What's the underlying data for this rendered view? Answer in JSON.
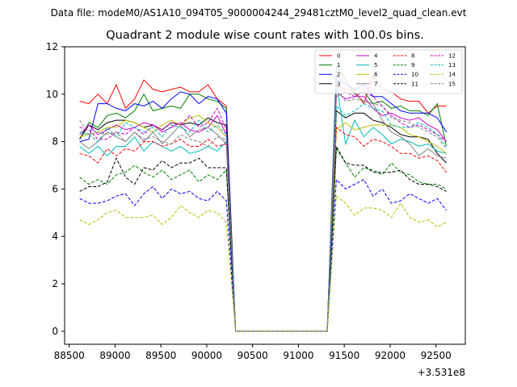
{
  "chart_data": {
    "type": "line",
    "suptitle": "Data file: modeM0/AS1A10_094T05_9000004244_29481cztM0_level2_quad_clean.evt",
    "title": "Quadrant 2 module wise count rates with 100.0s bins.",
    "xlabel": "",
    "ylabel": "",
    "x_offset_label": "+3.531e8",
    "xlim": [
      88450,
      92820
    ],
    "ylim": [
      -0.55,
      12.0
    ],
    "x_ticks": [
      88500,
      89000,
      89500,
      90000,
      90500,
      91000,
      91500,
      92000,
      92500
    ],
    "x_tick_labels": [
      "88500",
      "89000",
      "89500",
      "90000",
      "90500",
      "91000",
      "91500",
      "92000",
      "92500"
    ],
    "y_ticks": [
      0,
      2,
      4,
      6,
      8,
      10,
      12
    ],
    "y_tick_labels": [
      "0",
      "2",
      "4",
      "6",
      "8",
      "10",
      "12"
    ],
    "legend_position": "upper-right",
    "legend_columns": 4,
    "x": [
      88614,
      88714,
      88814,
      88914,
      89014,
      89114,
      89214,
      89314,
      89414,
      89514,
      89614,
      89714,
      89814,
      89914,
      90014,
      90114,
      90214,
      90314,
      90414,
      90514,
      90614,
      90714,
      90814,
      90914,
      91014,
      91114,
      91214,
      91314,
      91414,
      91514,
      91614,
      91714,
      91814,
      91914,
      92014,
      92114,
      92214,
      92314,
      92414,
      92514,
      92614
    ],
    "series": [
      {
        "name": "0",
        "color": "#ff0000",
        "dash": "solid",
        "values": [
          9.7,
          9.6,
          10.0,
          9.6,
          10.4,
          9.4,
          9.8,
          10.6,
          10.2,
          10.1,
          10.2,
          10.3,
          10.1,
          10.1,
          10.4,
          9.8,
          9.5,
          0,
          0,
          0,
          0,
          0,
          0,
          0,
          0,
          0,
          0,
          0,
          10.4,
          10.2,
          10.1,
          9.6,
          10.8,
          10.2,
          10.1,
          9.8,
          9.7,
          9.7,
          9.2,
          9.5,
          9.5
        ]
      },
      {
        "name": "1",
        "color": "#008000",
        "dash": "solid",
        "values": [
          8.1,
          8.8,
          8.6,
          9.1,
          9.2,
          9.0,
          9.3,
          10.0,
          9.3,
          9.4,
          9.5,
          9.4,
          10.0,
          10.0,
          9.8,
          9.7,
          9.4,
          0,
          0,
          0,
          0,
          0,
          0,
          0,
          0,
          0,
          0,
          0,
          11.2,
          10.6,
          10.0,
          10.1,
          9.6,
          9.7,
          9.4,
          9.5,
          9.3,
          9.3,
          9.1,
          9.6,
          7.8
        ]
      },
      {
        "name": "2",
        "color": "#0000ff",
        "dash": "solid",
        "values": [
          8.0,
          8.1,
          9.6,
          9.6,
          9.4,
          9.3,
          9.6,
          9.5,
          9.7,
          9.4,
          9.8,
          10.1,
          10.0,
          9.6,
          9.9,
          9.8,
          9.2,
          0,
          0,
          0,
          0,
          0,
          0,
          0,
          0,
          0,
          0,
          0,
          10.8,
          10.4,
          10.2,
          10.4,
          9.9,
          9.9,
          9.6,
          9.3,
          9.2,
          9.2,
          9.2,
          9.0,
          8.4
        ]
      },
      {
        "name": "3",
        "color": "#000000",
        "dash": "solid",
        "values": [
          8.1,
          8.7,
          8.5,
          8.8,
          8.9,
          8.9,
          8.8,
          8.6,
          8.7,
          8.5,
          8.8,
          8.7,
          8.8,
          8.7,
          9.0,
          8.8,
          8.7,
          0,
          0,
          0,
          0,
          0,
          0,
          0,
          0,
          0,
          0,
          0,
          9.3,
          9.0,
          9.2,
          9.2,
          8.9,
          8.8,
          8.6,
          8.3,
          8.2,
          8.2,
          8.1,
          7.5,
          7.1
        ]
      },
      {
        "name": "4",
        "color": "#cc00cc",
        "dash": "solid",
        "values": [
          8.3,
          8.7,
          8.3,
          8.5,
          8.7,
          8.5,
          8.6,
          8.8,
          8.7,
          8.4,
          8.6,
          8.8,
          8.5,
          8.4,
          8.6,
          9.1,
          8.3,
          0,
          0,
          0,
          0,
          0,
          0,
          0,
          0,
          0,
          0,
          0,
          10.1,
          9.8,
          9.9,
          9.9,
          9.4,
          9.1,
          9.2,
          9.0,
          8.9,
          9.0,
          8.7,
          8.5,
          8.0
        ]
      },
      {
        "name": "5",
        "color": "#00bbbb",
        "dash": "solid",
        "values": [
          7.8,
          7.5,
          7.8,
          7.4,
          7.8,
          7.8,
          8.2,
          7.6,
          8.0,
          7.8,
          7.6,
          7.8,
          7.5,
          7.6,
          7.8,
          7.6,
          8.0,
          0,
          0,
          0,
          0,
          0,
          0,
          0,
          0,
          0,
          0,
          0,
          10.5,
          7.9,
          8.9,
          8.2,
          8.6,
          8.3,
          7.9,
          8.1,
          8.0,
          7.8,
          7.9,
          7.6,
          7.5
        ]
      },
      {
        "name": "6",
        "color": "#bbbb00",
        "dash": "solid",
        "values": [
          8.2,
          8.3,
          8.4,
          8.6,
          8.6,
          8.9,
          8.8,
          8.6,
          8.4,
          8.7,
          8.9,
          8.7,
          9.0,
          9.1,
          8.8,
          8.6,
          8.2,
          0,
          0,
          0,
          0,
          0,
          0,
          0,
          0,
          0,
          0,
          0,
          8.5,
          8.8,
          8.5,
          8.6,
          8.7,
          8.7,
          8.7,
          8.6,
          8.3,
          8.2,
          8.0,
          7.8,
          7.5
        ]
      },
      {
        "name": "7",
        "color": "#808080",
        "dash": "solid",
        "values": [
          8.0,
          7.7,
          8.0,
          8.4,
          8.2,
          8.0,
          8.4,
          8.0,
          8.4,
          7.9,
          8.3,
          8.7,
          8.2,
          8.5,
          8.6,
          8.3,
          7.9,
          0,
          0,
          0,
          0,
          0,
          0,
          0,
          0,
          0,
          0,
          0,
          9.9,
          10.1,
          10.0,
          9.7,
          9.6,
          8.9,
          8.4,
          8.2,
          7.9,
          7.4,
          7.7,
          7.4,
          7.3
        ]
      },
      {
        "name": "8",
        "color": "#ff0000",
        "dash": "dashed",
        "values": [
          7.5,
          7.4,
          7.1,
          7.7,
          7.4,
          7.7,
          7.6,
          8.0,
          8.0,
          7.8,
          7.9,
          8.1,
          7.8,
          7.8,
          8.1,
          7.8,
          7.9,
          0,
          0,
          0,
          0,
          0,
          0,
          0,
          0,
          0,
          0,
          0,
          8.6,
          8.3,
          8.2,
          7.8,
          8.1,
          8.0,
          7.8,
          7.5,
          7.5,
          7.3,
          7.4,
          7.2,
          6.7
        ]
      },
      {
        "name": "9",
        "color": "#008000",
        "dash": "dashed",
        "values": [
          6.5,
          6.2,
          6.4,
          6.2,
          6.6,
          6.7,
          7.0,
          6.7,
          6.5,
          6.8,
          6.4,
          6.6,
          6.8,
          6.3,
          6.6,
          6.4,
          6.8,
          0,
          0,
          0,
          0,
          0,
          0,
          0,
          0,
          0,
          0,
          0,
          7.7,
          7.1,
          6.5,
          6.9,
          6.8,
          6.6,
          7.1,
          6.7,
          6.6,
          6.3,
          6.2,
          6.2,
          6.0
        ]
      },
      {
        "name": "10",
        "color": "#0000ff",
        "dash": "dashed",
        "values": [
          5.6,
          5.4,
          5.4,
          5.5,
          5.7,
          5.8,
          5.3,
          5.8,
          6.1,
          5.6,
          6.0,
          5.8,
          5.9,
          5.6,
          5.5,
          5.9,
          5.5,
          0,
          0,
          0,
          0,
          0,
          0,
          0,
          0,
          0,
          0,
          0,
          6.4,
          6.0,
          6.2,
          6.4,
          5.7,
          6.0,
          5.4,
          5.5,
          5.8,
          5.6,
          5.4,
          5.6,
          5.1
        ]
      },
      {
        "name": "11",
        "color": "#000000",
        "dash": "dashed",
        "values": [
          5.9,
          6.1,
          6.1,
          6.3,
          7.3,
          6.5,
          6.2,
          6.9,
          6.8,
          7.2,
          6.9,
          7.1,
          7.1,
          7.3,
          6.9,
          6.9,
          6.9,
          0,
          0,
          0,
          0,
          0,
          0,
          0,
          0,
          0,
          0,
          0,
          7.8,
          7.1,
          7.0,
          7.0,
          6.7,
          6.7,
          6.7,
          6.8,
          6.4,
          6.2,
          6.2,
          6.1,
          5.9
        ]
      },
      {
        "name": "12",
        "color": "#cc00cc",
        "dash": "dashed",
        "values": [
          8.6,
          8.5,
          8.1,
          8.1,
          8.4,
          8.3,
          8.6,
          8.3,
          8.7,
          8.5,
          8.8,
          8.7,
          9.1,
          8.6,
          8.8,
          9.4,
          8.5,
          0,
          0,
          0,
          0,
          0,
          0,
          0,
          0,
          0,
          0,
          0,
          10.3,
          10.1,
          9.9,
          10.1,
          9.9,
          9.5,
          9.1,
          8.8,
          8.6,
          8.7,
          8.5,
          8.3,
          8.0
        ]
      },
      {
        "name": "13",
        "color": "#00bbbb",
        "dash": "dashed",
        "values": [
          8.4,
          8.3,
          8.0,
          8.6,
          8.2,
          8.8,
          8.6,
          8.4,
          8.6,
          8.2,
          8.7,
          8.6,
          8.4,
          8.9,
          8.4,
          8.7,
          8.3,
          0,
          0,
          0,
          0,
          0,
          0,
          0,
          0,
          0,
          0,
          0,
          9.5,
          9.1,
          9.3,
          9.6,
          9.4,
          9.3,
          8.7,
          8.6,
          8.6,
          8.8,
          8.6,
          8.3,
          7.8
        ]
      },
      {
        "name": "14",
        "color": "#bbbb00",
        "dash": "dashed",
        "values": [
          4.7,
          4.5,
          4.7,
          5.0,
          5.1,
          4.8,
          4.8,
          4.8,
          4.9,
          4.5,
          4.8,
          5.3,
          5.0,
          4.8,
          5.1,
          5.0,
          4.6,
          0,
          0,
          0,
          0,
          0,
          0,
          0,
          0,
          0,
          0,
          0,
          5.7,
          5.4,
          4.9,
          5.2,
          5.2,
          5.1,
          4.8,
          5.4,
          4.8,
          4.6,
          4.7,
          4.4,
          4.6
        ]
      },
      {
        "name": "15",
        "color": "#808080",
        "dash": "dashed",
        "values": [
          8.9,
          8.3,
          8.4,
          8.3,
          8.4,
          8.0,
          8.4,
          8.1,
          8.2,
          8.0,
          7.9,
          8.3,
          8.1,
          8.0,
          7.8,
          8.2,
          8.1,
          0,
          0,
          0,
          0,
          0,
          0,
          0,
          0,
          0,
          0,
          0,
          10.2,
          9.7,
          9.8,
          9.7,
          9.6,
          9.5,
          9.0,
          8.9,
          8.8,
          8.6,
          8.4,
          8.2,
          7.7
        ]
      }
    ]
  }
}
